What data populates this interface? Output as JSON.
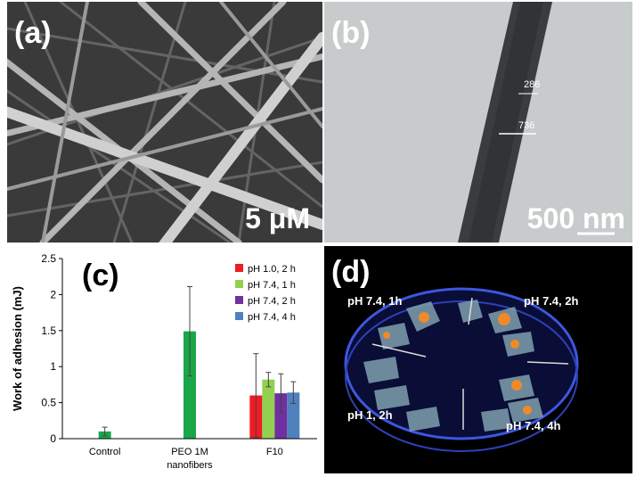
{
  "panels": {
    "a": {
      "label": "(a)",
      "scale_text": "5 μM"
    },
    "b": {
      "label": "(b)",
      "scale_text": "500 nm",
      "measure_small": "286",
      "measure_large": "736"
    },
    "c": {
      "label": "(c)"
    },
    "d": {
      "label": "(d)",
      "annotations": [
        "pH 7.4, 1h",
        "pH 7.4, 2h",
        "pH 1, 2h",
        "pH 7.4, 4h"
      ]
    }
  },
  "chart_data": {
    "type": "bar",
    "ylabel": "Work of adhesion (mJ)",
    "xlabel": "",
    "ylim": [
      0,
      2.5
    ],
    "yticks": [
      "0",
      "0.5",
      "1",
      "1.5",
      "2",
      "2.5"
    ],
    "ytick_values": [
      0,
      0.5,
      1,
      1.5,
      2,
      2.5
    ],
    "categories": [
      "Control",
      "PEO 1M nanofibers",
      "F10"
    ],
    "category_lines": [
      [
        "Control"
      ],
      [
        "PEO 1M",
        "nanofibers"
      ],
      [
        "F10"
      ]
    ],
    "legend_position": "top-right",
    "grid": false,
    "bars": [
      {
        "category": 0,
        "value": 0.1,
        "error": 0.06,
        "color": "#1aa64a"
      },
      {
        "category": 1,
        "value": 1.49,
        "error": 0.62,
        "color": "#1aa64a"
      },
      {
        "category": 2,
        "series": 0,
        "value": 0.6,
        "error": 0.58,
        "color": "#ee1c24"
      },
      {
        "category": 2,
        "series": 1,
        "value": 0.82,
        "error": 0.1,
        "color": "#92d050"
      },
      {
        "category": 2,
        "series": 2,
        "value": 0.63,
        "error": 0.27,
        "color": "#7030a0"
      },
      {
        "category": 2,
        "series": 3,
        "value": 0.64,
        "error": 0.15,
        "color": "#4f81bd"
      }
    ],
    "series": [
      {
        "name": "pH 1.0, 2 h",
        "color": "#ee1c24"
      },
      {
        "name": "pH 7.4, 1 h",
        "color": "#92d050"
      },
      {
        "name": "pH 7.4, 2 h",
        "color": "#7030a0"
      },
      {
        "name": "pH 7.4, 4 h",
        "color": "#4f81bd"
      }
    ]
  }
}
